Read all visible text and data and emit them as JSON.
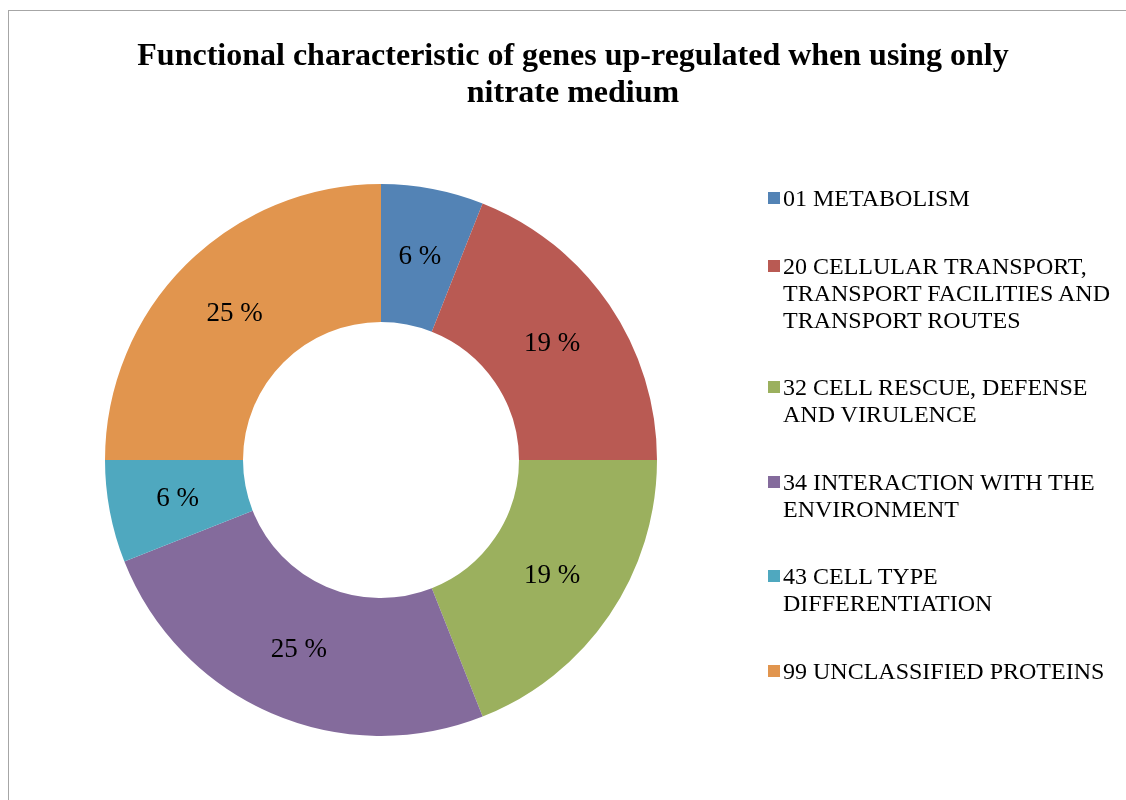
{
  "chart_data": {
    "type": "donut",
    "title": "Functional characteristic of genes up-regulated when using only nitrate medium",
    "categories": [
      "01 METABOLISM",
      "20 CELLULAR TRANSPORT, TRANSPORT FACILITIES AND TRANSPORT ROUTES",
      "32 CELL RESCUE, DEFENSE AND VIRULENCE",
      "34 INTERACTION WITH THE ENVIRONMENT",
      "43 CELL TYPE DIFFERENTIATION",
      "99 UNCLASSIFIED PROTEINS"
    ],
    "values": [
      6,
      19,
      19,
      25,
      6,
      25
    ],
    "colors": [
      "#5383b5",
      "#b95a53",
      "#9bb05e",
      "#846b9c",
      "#4fa8bf",
      "#e1954e"
    ],
    "value_labels": [
      "6 %",
      "19 %",
      "19 %",
      "25 %",
      "6 %",
      "25 %"
    ],
    "legend": "right"
  }
}
